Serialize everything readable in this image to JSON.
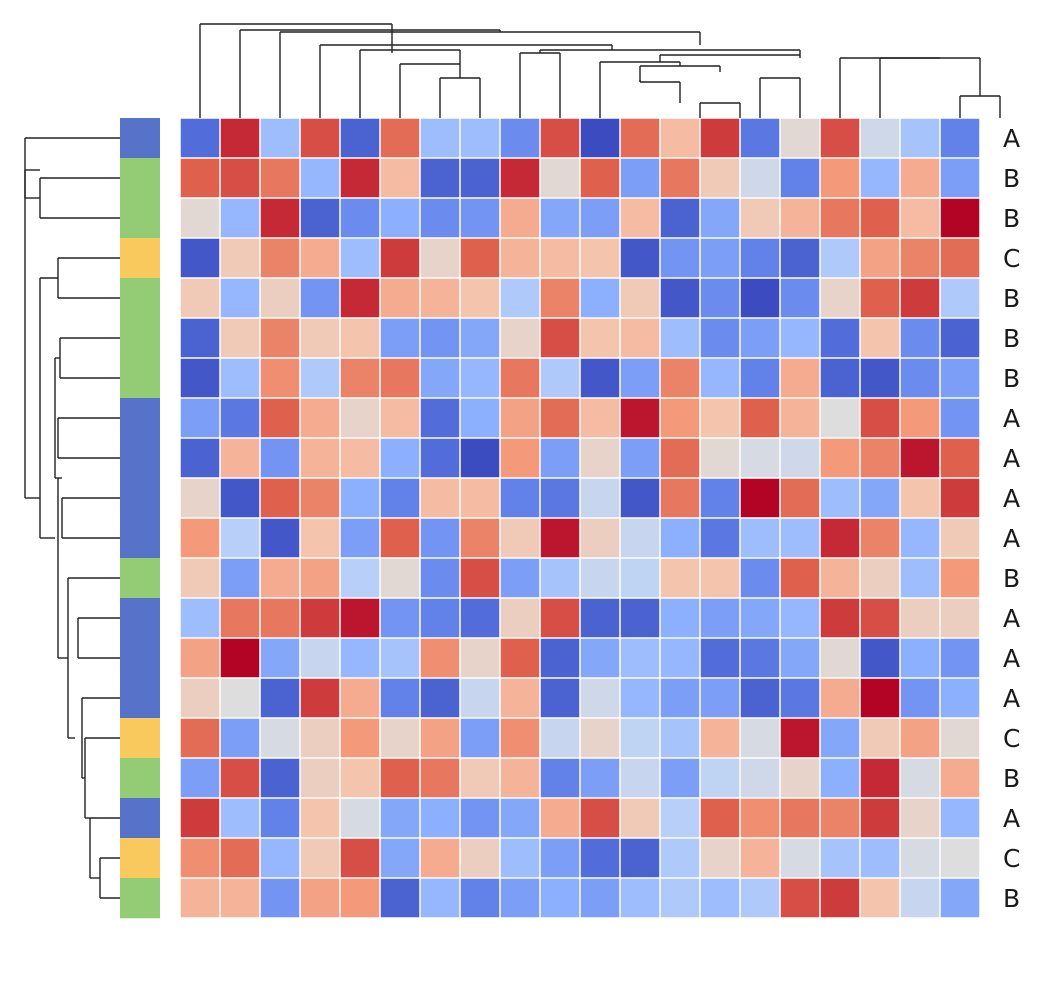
{
  "chart_data": {
    "type": "heatmap",
    "title": "",
    "xlabel": "",
    "ylabel": "",
    "colormap": "coolwarm",
    "value_range": [
      -1,
      1
    ],
    "grid_color": "#ffffff",
    "row_labels": [
      "A",
      "B",
      "B",
      "C",
      "B",
      "B",
      "B",
      "A",
      "A",
      "A",
      "A",
      "B",
      "A",
      "A",
      "A",
      "C",
      "B",
      "A",
      "C",
      "B"
    ],
    "group_colors": {
      "A": "#5672c9",
      "B": "#94cc75",
      "C": "#f9c95d"
    },
    "matrix": [
      [
        -0.85,
        0.9,
        -0.4,
        0.8,
        -0.9,
        0.7,
        -0.4,
        -0.4,
        -0.7,
        0.8,
        -1.0,
        0.7,
        0.3,
        0.85,
        -0.8,
        0.05,
        0.8,
        -0.1,
        -0.35,
        -0.75
      ],
      [
        0.75,
        0.8,
        0.65,
        -0.45,
        0.9,
        0.3,
        -0.9,
        -0.9,
        0.9,
        0.05,
        0.75,
        -0.6,
        0.65,
        0.2,
        -0.1,
        -0.75,
        0.5,
        -0.45,
        0.4,
        -0.6
      ],
      [
        0.05,
        -0.45,
        0.9,
        -0.9,
        -0.7,
        -0.5,
        -0.7,
        -0.65,
        0.4,
        -0.55,
        -0.6,
        0.3,
        -0.9,
        -0.55,
        0.2,
        0.35,
        0.65,
        0.75,
        0.3,
        1.0
      ],
      [
        -0.95,
        0.2,
        0.6,
        0.4,
        -0.4,
        0.85,
        0.1,
        0.75,
        0.35,
        0.3,
        0.25,
        -0.95,
        -0.65,
        -0.6,
        -0.75,
        -0.9,
        -0.3,
        0.45,
        0.6,
        0.7
      ],
      [
        0.2,
        -0.45,
        0.15,
        -0.65,
        0.9,
        0.4,
        0.35,
        0.25,
        -0.3,
        0.6,
        -0.5,
        0.2,
        -0.95,
        -0.7,
        -1.0,
        -0.7,
        0.1,
        0.75,
        0.85,
        -0.3
      ],
      [
        -0.9,
        0.2,
        0.6,
        0.2,
        0.25,
        -0.6,
        -0.65,
        -0.55,
        0.1,
        0.8,
        0.25,
        0.3,
        -0.4,
        -0.7,
        -0.6,
        -0.45,
        -0.85,
        0.25,
        -0.7,
        -0.9
      ],
      [
        -0.95,
        -0.4,
        0.55,
        -0.3,
        0.6,
        0.65,
        -0.55,
        -0.45,
        0.65,
        -0.3,
        -0.95,
        -0.6,
        0.6,
        -0.45,
        -0.75,
        0.4,
        -0.9,
        -0.95,
        -0.7,
        -0.6
      ],
      [
        -0.6,
        -0.8,
        0.75,
        0.4,
        0.1,
        0.3,
        -0.85,
        -0.5,
        0.45,
        0.7,
        0.3,
        0.95,
        0.5,
        0.25,
        0.75,
        0.35,
        0.0,
        0.8,
        0.5,
        -0.65
      ],
      [
        -0.9,
        0.35,
        -0.65,
        0.35,
        0.3,
        -0.5,
        -0.85,
        -1.0,
        0.5,
        -0.6,
        0.1,
        -0.6,
        0.7,
        0.05,
        -0.05,
        -0.1,
        0.5,
        0.6,
        0.95,
        0.75
      ],
      [
        0.1,
        -0.95,
        0.75,
        0.6,
        -0.5,
        -0.75,
        0.3,
        0.3,
        -0.75,
        -0.8,
        -0.15,
        -0.95,
        0.65,
        -0.75,
        1.0,
        0.7,
        -0.4,
        -0.55,
        0.25,
        0.85
      ],
      [
        0.5,
        -0.25,
        -0.95,
        0.25,
        -0.6,
        0.75,
        -0.65,
        0.6,
        0.2,
        0.95,
        0.15,
        -0.15,
        -0.5,
        -0.8,
        -0.4,
        -0.4,
        0.9,
        0.6,
        -0.45,
        0.2
      ],
      [
        0.2,
        -0.6,
        0.4,
        0.45,
        -0.25,
        0.05,
        -0.7,
        0.8,
        -0.6,
        -0.35,
        -0.15,
        -0.2,
        0.25,
        0.25,
        -0.7,
        0.75,
        0.35,
        0.15,
        -0.4,
        0.5
      ],
      [
        -0.4,
        0.65,
        0.65,
        0.85,
        0.95,
        -0.65,
        -0.75,
        -0.85,
        0.15,
        0.8,
        -0.9,
        -0.9,
        -0.5,
        -0.6,
        -0.55,
        -0.45,
        0.85,
        0.8,
        0.15,
        0.15
      ],
      [
        0.45,
        1.0,
        -0.55,
        -0.15,
        -0.45,
        -0.35,
        0.55,
        0.1,
        0.75,
        -0.9,
        -0.55,
        -0.4,
        -0.45,
        -0.85,
        -0.8,
        -0.55,
        0.05,
        -0.95,
        -0.5,
        -0.65
      ],
      [
        0.15,
        0.0,
        -0.9,
        0.85,
        0.4,
        -0.75,
        -0.9,
        -0.15,
        0.35,
        -0.9,
        -0.1,
        -0.45,
        -0.6,
        -0.6,
        -0.9,
        -0.8,
        0.4,
        1.0,
        -0.65,
        -0.5
      ],
      [
        0.7,
        -0.6,
        -0.05,
        0.15,
        0.5,
        0.1,
        0.45,
        -0.6,
        0.55,
        -0.15,
        0.1,
        -0.2,
        -0.35,
        0.35,
        -0.05,
        0.95,
        -0.55,
        0.2,
        0.45,
        0.05
      ],
      [
        -0.6,
        0.8,
        -0.9,
        0.15,
        0.25,
        0.75,
        0.65,
        0.2,
        0.35,
        -0.75,
        -0.6,
        -0.15,
        -0.6,
        -0.2,
        -0.1,
        0.1,
        -0.5,
        0.9,
        -0.05,
        0.4
      ],
      [
        0.85,
        -0.4,
        -0.75,
        0.25,
        -0.05,
        -0.55,
        -0.5,
        -0.65,
        -0.55,
        0.4,
        0.8,
        0.2,
        -0.25,
        0.75,
        0.55,
        0.65,
        0.6,
        0.85,
        0.1,
        -0.45
      ],
      [
        0.55,
        0.7,
        -0.45,
        0.2,
        0.8,
        -0.55,
        0.4,
        0.15,
        -0.4,
        -0.6,
        -0.85,
        -0.9,
        -0.3,
        0.1,
        0.35,
        -0.05,
        -0.35,
        -0.4,
        -0.05,
        0.0
      ],
      [
        0.35,
        0.35,
        -0.65,
        0.45,
        0.5,
        -0.9,
        -0.45,
        -0.75,
        -0.6,
        -0.5,
        -0.6,
        -0.4,
        -0.3,
        -0.4,
        -0.3,
        0.8,
        0.85,
        0.25,
        -0.15,
        -0.55
      ]
    ]
  }
}
